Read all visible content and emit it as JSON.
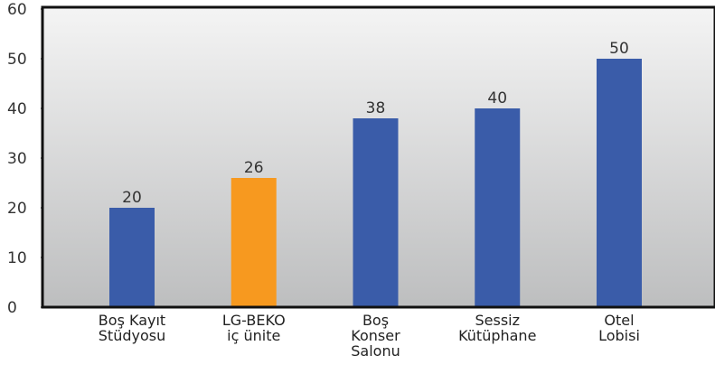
{
  "chart_data": {
    "type": "bar",
    "categories": [
      "Boş Kayıt\nStüdyosu",
      "LG-BEKO\niç ünite",
      "Boş\nKonser\nSalonu",
      "Sessiz\nKütüphane",
      "Otel\nLobisi"
    ],
    "values": [
      20,
      26,
      38,
      40,
      50
    ],
    "colors": [
      "#3a5ca9",
      "#f7991f",
      "#3a5ca9",
      "#3a5ca9",
      "#3a5ca9"
    ],
    "ylim": [
      0,
      60
    ],
    "yticks": [
      0,
      10,
      20,
      30,
      40,
      50,
      60
    ]
  }
}
